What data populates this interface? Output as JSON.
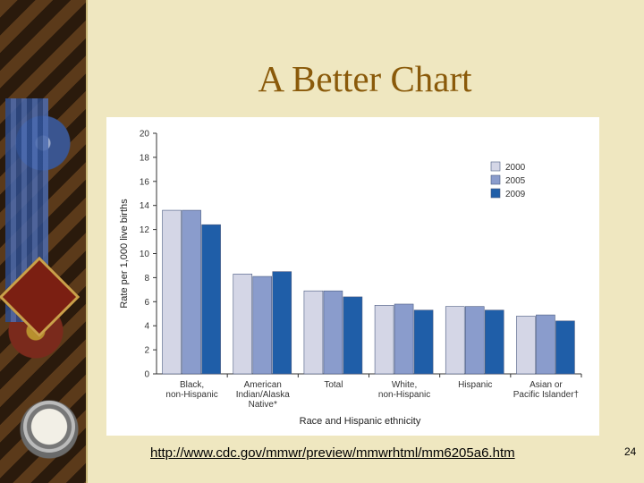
{
  "slide": {
    "title": "A Better Chart",
    "url": "http://www.cdc.gov/mmwr/preview/mmwrhtml/mm6205a6.htm",
    "page_number": "24"
  },
  "chart_data": {
    "type": "bar",
    "xlabel": "Race and Hispanic ethnicity",
    "ylabel": "Rate per 1,000 live births",
    "ylim": [
      0,
      20
    ],
    "yticks": [
      0,
      2,
      4,
      6,
      8,
      10,
      12,
      14,
      16,
      18,
      20
    ],
    "categories": [
      [
        "Black,",
        "non-Hispanic"
      ],
      [
        "American",
        "Indian/Alaska",
        "Native*"
      ],
      [
        "Total"
      ],
      [
        "White,",
        "non-Hispanic"
      ],
      [
        "Hispanic"
      ],
      [
        "Asian or",
        "Pacific Islander†"
      ]
    ],
    "series": [
      {
        "name": "2000",
        "color": "#d4d6e6",
        "values": [
          13.6,
          8.3,
          6.9,
          5.7,
          5.6,
          4.8
        ]
      },
      {
        "name": "2005",
        "color": "#8a9ccc",
        "values": [
          13.6,
          8.1,
          6.9,
          5.8,
          5.6,
          4.9
        ]
      },
      {
        "name": "2009",
        "color": "#1f5ea8",
        "values": [
          12.4,
          8.5,
          6.4,
          5.3,
          5.3,
          4.4
        ]
      }
    ],
    "legend_position": "top-right",
    "grid": false
  }
}
